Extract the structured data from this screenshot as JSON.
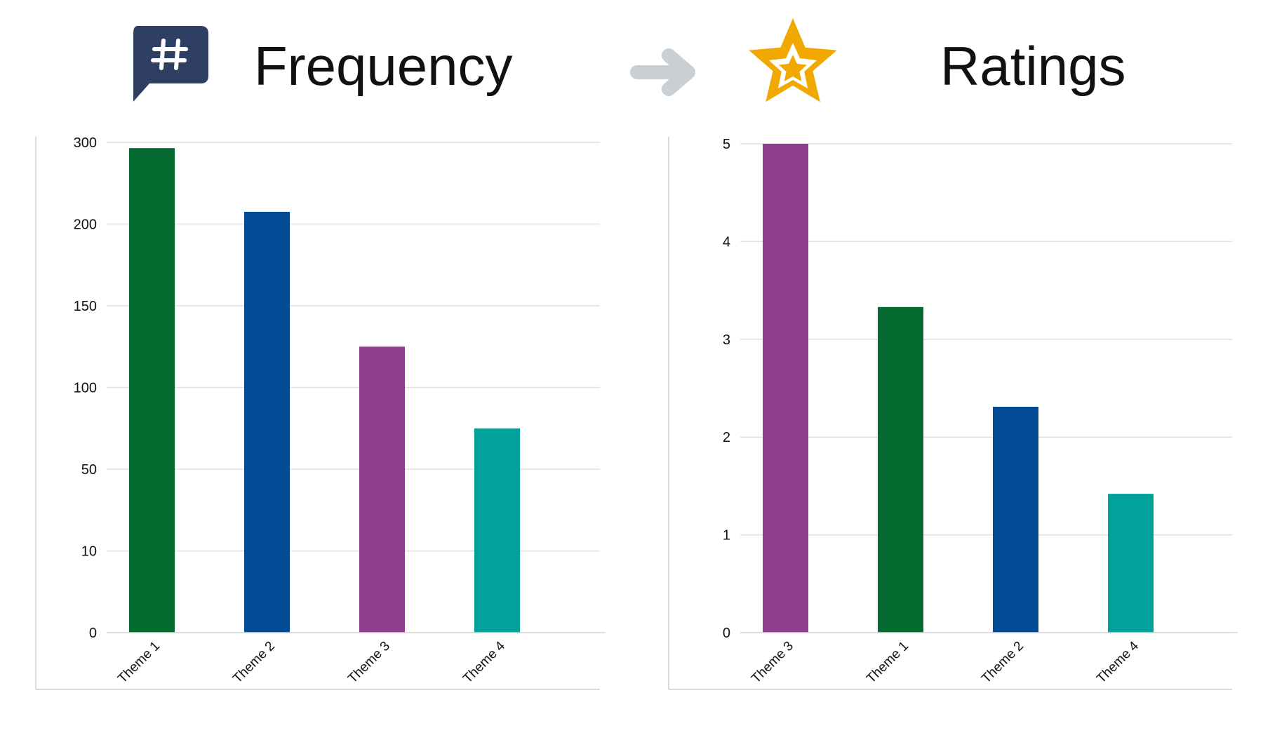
{
  "header": {
    "left_title": "Frequency",
    "right_title": "Ratings",
    "left_icon": "hashtag-speech-bubble-icon",
    "arrow_icon": "arrow-right-icon",
    "right_icon": "star-icon"
  },
  "colors": {
    "green": "#046a30",
    "blue": "#024a94",
    "purple": "#8e3f8c",
    "teal": "#01a299",
    "icon_navy": "#2e3f63",
    "arrow_gray": "#c9cfd3",
    "star_gold": "#f1a900",
    "grid": "#e1e1e1",
    "frame": "#dcdcdc"
  },
  "chart_data": [
    {
      "type": "bar",
      "title": "Frequency",
      "categories": [
        "Theme 1",
        "Theme 2",
        "Theme 3",
        "Theme 4"
      ],
      "values": [
        293,
        215,
        125,
        75
      ],
      "colors": [
        "#046a30",
        "#024a94",
        "#8e3f8c",
        "#01a299"
      ],
      "y_ticks": [
        0,
        10,
        50,
        100,
        150,
        200,
        300
      ],
      "y_tick_values": [
        0,
        10,
        50,
        100,
        150,
        200,
        300
      ],
      "ylim": [
        0,
        300
      ],
      "grid": true,
      "xlabel": "",
      "ylabel": ""
    },
    {
      "type": "bar",
      "title": "Ratings",
      "categories": [
        "Theme 3",
        "Theme 1",
        "Theme 2",
        "Theme 4"
      ],
      "values": [
        5.0,
        3.33,
        2.31,
        1.42
      ],
      "colors": [
        "#8e3f8c",
        "#046a30",
        "#024a94",
        "#01a299"
      ],
      "y_ticks": [
        0,
        1,
        2,
        3,
        4,
        5
      ],
      "y_tick_values": [
        0,
        1,
        2,
        3,
        4,
        5
      ],
      "ylim": [
        0,
        5
      ],
      "grid": true,
      "xlabel": "",
      "ylabel": ""
    }
  ]
}
